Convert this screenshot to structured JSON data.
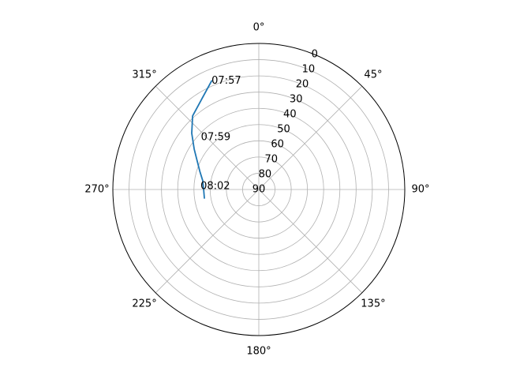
{
  "chart_data": {
    "type": "line",
    "projection": "polar",
    "theta_zero_location": "N",
    "theta_direction": "clockwise",
    "r_axis_inverted": true,
    "r_range": [
      0,
      90
    ],
    "grid": true,
    "theta_ticks": [
      {
        "deg": 0,
        "label": "0°"
      },
      {
        "deg": 45,
        "label": "45°"
      },
      {
        "deg": 90,
        "label": "90°"
      },
      {
        "deg": 135,
        "label": "135°"
      },
      {
        "deg": 180,
        "label": "180°"
      },
      {
        "deg": 225,
        "label": "225°"
      },
      {
        "deg": 270,
        "label": "270°"
      },
      {
        "deg": 315,
        "label": "315°"
      }
    ],
    "r_ticks": [
      {
        "value": 0,
        "label": "0"
      },
      {
        "value": 10,
        "label": "10"
      },
      {
        "value": 20,
        "label": "20"
      },
      {
        "value": 30,
        "label": "30"
      },
      {
        "value": 40,
        "label": "40"
      },
      {
        "value": 50,
        "label": "50"
      },
      {
        "value": 60,
        "label": "60"
      },
      {
        "value": 70,
        "label": "70"
      },
      {
        "value": 80,
        "label": "80"
      },
      {
        "value": 90,
        "label": "90"
      }
    ],
    "series": [
      {
        "color": "#1f77b4",
        "points": [
          {
            "theta": 336.5,
            "r": 17
          },
          {
            "theta": 318.0,
            "r": 29
          },
          {
            "theta": 310.0,
            "r": 36
          },
          {
            "theta": 302.0,
            "r": 43
          },
          {
            "theta": 295.0,
            "r": 48
          },
          {
            "theta": 287.0,
            "r": 52
          },
          {
            "theta": 279.0,
            "r": 55
          },
          {
            "theta": 270.0,
            "r": 56
          },
          {
            "theta": 261.0,
            "r": 56
          }
        ]
      }
    ],
    "annotations": [
      {
        "theta": 336.5,
        "r": 17,
        "text": "07:57"
      },
      {
        "theta": 312.0,
        "r": 42,
        "text": "07:59"
      },
      {
        "theta": 273.0,
        "r": 54,
        "text": "08:02"
      }
    ]
  }
}
